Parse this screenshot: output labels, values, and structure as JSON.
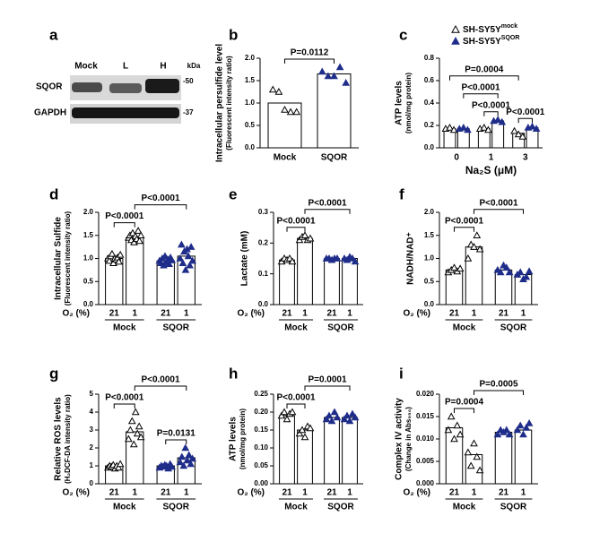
{
  "blot": {
    "panel": "a",
    "lanes": [
      "Mock",
      "L",
      "H"
    ],
    "unit": "kDa",
    "rows": [
      {
        "label": "SQOR",
        "marker": "-50"
      },
      {
        "label": "GAPDH",
        "marker": "-37"
      }
    ]
  },
  "chart_data": [
    {
      "type": "bar",
      "panel": "b",
      "y_label": [
        "Intracellular persulfide level",
        "(Fluorescent intensity ratio)"
      ],
      "groups": [
        "Mock",
        "SQOR"
      ],
      "values": [
        1.0,
        1.65
      ],
      "points": [
        [
          1.3,
          1.25,
          0.85,
          0.8,
          0.8
        ],
        [
          1.7,
          1.6,
          1.6,
          1.8,
          1.45
        ]
      ],
      "point_colors": [
        "#ffffff",
        "#1f2d8a"
      ],
      "ylim": [
        0,
        2
      ],
      "yticks": [
        {
          "value": 0,
          "label": "0.0"
        },
        {
          "value": 0.5,
          "label": "0.5"
        },
        {
          "value": 1,
          "label": "1.0"
        },
        {
          "value": 1.5,
          "label": "1.5"
        },
        {
          "value": 2,
          "label": "2.0"
        }
      ],
      "brackets": [
        {
          "from": 0,
          "to": 1,
          "label": "P=0.0112"
        }
      ]
    },
    {
      "type": "bar",
      "panel": "c",
      "y_label": [
        "ATP levels",
        "(nmol/mg protein)"
      ],
      "x_label": "Na₂S (μM)",
      "legend": [
        {
          "name": "SH-SY5Y",
          "sup": "mock",
          "color": "#ffffff"
        },
        {
          "name": "SH-SY5Y",
          "sup": "SQOR",
          "color": "#1f2d8a"
        }
      ],
      "groups": [
        "0",
        "1",
        "3"
      ],
      "values": [
        0.17,
        0.17,
        0.17,
        0.24,
        0.13,
        0.18
      ],
      "points": [
        [
          0.17,
          0.18,
          0.16
        ],
        [
          0.17,
          0.18,
          0.16
        ],
        [
          0.17,
          0.18,
          0.16
        ],
        [
          0.24,
          0.25,
          0.23
        ],
        [
          0.15,
          0.12,
          0.1
        ],
        [
          0.18,
          0.19,
          0.17
        ]
      ],
      "point_colors": [
        "#ffffff",
        "#1f2d8a",
        "#ffffff",
        "#1f2d8a",
        "#ffffff",
        "#1f2d8a"
      ],
      "ylim": [
        0,
        0.8
      ],
      "yticks": [
        {
          "value": 0,
          "label": "0.0"
        },
        {
          "value": 0.2,
          "label": "0.2"
        },
        {
          "value": 0.4,
          "label": "0.4"
        },
        {
          "value": 0.6,
          "label": "0.6"
        },
        {
          "value": 0.8,
          "label": "0.8"
        }
      ],
      "brackets": [
        {
          "from": 4,
          "to": 5,
          "label": "P<0.0001"
        },
        {
          "from": 2,
          "to": 3,
          "label": "P<0.0001"
        },
        {
          "from": 1,
          "to": 3,
          "label": "P<0.0001"
        },
        {
          "from": 0,
          "to": 4,
          "label": "P=0.0004"
        }
      ]
    },
    {
      "type": "bar",
      "panel": "d",
      "y_label": [
        "Intracellular Sulfide",
        "(Fluorescent intensity ratio)"
      ],
      "x_label": "O₂ (%)",
      "groups": [
        "Mock",
        "SQOR"
      ],
      "subcategories": [
        "21",
        "1",
        "21",
        "1"
      ],
      "values": [
        1.0,
        1.45,
        0.95,
        1.05
      ],
      "points": [
        [
          1.0,
          0.95,
          1.05,
          1.1,
          0.9,
          1.0,
          0.98,
          1.02,
          0.93,
          1.08
        ],
        [
          1.45,
          1.5,
          1.4,
          1.55,
          1.35,
          1.48,
          1.42,
          1.6,
          1.38,
          1.5
        ],
        [
          0.95,
          0.9,
          1.0,
          0.85,
          1.05,
          0.92,
          0.98,
          0.88,
          1.02,
          0.96
        ],
        [
          1.0,
          1.3,
          0.9,
          1.15,
          0.75,
          1.2,
          1.05,
          0.85,
          1.25,
          0.95
        ]
      ],
      "point_colors": [
        "#ffffff",
        "#ffffff",
        "#1f2d8a",
        "#1f2d8a"
      ],
      "ylim": [
        0,
        2
      ],
      "yticks": [
        {
          "value": 0,
          "label": "0.0"
        },
        {
          "value": 0.5,
          "label": "0.5"
        },
        {
          "value": 1,
          "label": "1.0"
        },
        {
          "value": 1.5,
          "label": "1.5"
        },
        {
          "value": 2,
          "label": "2.0"
        }
      ],
      "brackets": [
        {
          "from": 0,
          "to": 1,
          "label": "P<0.0001"
        },
        {
          "from": 1,
          "to": 3,
          "label": "P<0.0001"
        }
      ]
    },
    {
      "type": "bar",
      "panel": "e",
      "y_label": [
        "Lactate (mM)"
      ],
      "x_label": "O₂ (%)",
      "groups": [
        "Mock",
        "SQOR"
      ],
      "subcategories": [
        "21",
        "1",
        "21",
        "1"
      ],
      "values": [
        0.145,
        0.215,
        0.15,
        0.15
      ],
      "points": [
        [
          0.14,
          0.15,
          0.145,
          0.15,
          0.14
        ],
        [
          0.21,
          0.22,
          0.225,
          0.21,
          0.215
        ],
        [
          0.15,
          0.15,
          0.145,
          0.15,
          0.15
        ],
        [
          0.15,
          0.145,
          0.155,
          0.15,
          0.14
        ]
      ],
      "point_colors": [
        "#ffffff",
        "#ffffff",
        "#1f2d8a",
        "#1f2d8a"
      ],
      "ylim": [
        0,
        0.3
      ],
      "yticks": [
        {
          "value": 0,
          "label": "0.0"
        },
        {
          "value": 0.1,
          "label": "0.1"
        },
        {
          "value": 0.2,
          "label": "0.2"
        },
        {
          "value": 0.3,
          "label": "0.3"
        }
      ],
      "brackets": [
        {
          "from": 0,
          "to": 1,
          "label": "P<0.0001"
        },
        {
          "from": 1,
          "to": 3,
          "label": "P<0.0001"
        }
      ]
    },
    {
      "type": "bar",
      "panel": "f",
      "y_label": [
        "NADH/NAD⁺"
      ],
      "x_label": "O₂ (%)",
      "groups": [
        "Mock",
        "SQOR"
      ],
      "subcategories": [
        "21",
        "1",
        "21",
        "1"
      ],
      "values": [
        0.75,
        1.25,
        0.75,
        0.65
      ],
      "points": [
        [
          0.7,
          0.75,
          0.8,
          0.72,
          0.78
        ],
        [
          1.0,
          1.3,
          1.25,
          1.5,
          1.2
        ],
        [
          0.75,
          0.7,
          0.85,
          0.8,
          0.7
        ],
        [
          0.65,
          0.7,
          0.55,
          0.6,
          0.72
        ]
      ],
      "point_colors": [
        "#ffffff",
        "#ffffff",
        "#1f2d8a",
        "#1f2d8a"
      ],
      "ylim": [
        0,
        2
      ],
      "yticks": [
        {
          "value": 0,
          "label": "0.0"
        },
        {
          "value": 0.5,
          "label": "0.5"
        },
        {
          "value": 1,
          "label": "1.0"
        },
        {
          "value": 1.5,
          "label": "1.5"
        },
        {
          "value": 2,
          "label": "2.0"
        }
      ],
      "brackets": [
        {
          "from": 0,
          "to": 1,
          "label": "P<0.0001"
        },
        {
          "from": 1,
          "to": 3,
          "label": "P<0.0001"
        }
      ]
    },
    {
      "type": "bar",
      "panel": "g",
      "y_label": [
        "Relative ROS levels",
        "(H₂DCF-DA intensity ratio)"
      ],
      "x_label": "O₂ (%)",
      "groups": [
        "Mock",
        "SQOR"
      ],
      "subcategories": [
        "21",
        "1",
        "21",
        "1"
      ],
      "values": [
        1.0,
        2.9,
        1.0,
        1.45
      ],
      "points": [
        [
          0.9,
          1.0,
          0.95,
          1.05,
          0.85,
          1.0,
          0.9,
          1.1
        ],
        [
          2.5,
          3.0,
          3.5,
          2.2,
          4.0,
          2.8,
          3.2,
          2.6
        ],
        [
          0.9,
          1.0,
          0.95,
          1.05,
          1.0,
          0.85,
          1.1,
          0.95
        ],
        [
          1.2,
          1.5,
          1.0,
          2.0,
          1.3,
          1.6,
          1.1,
          1.4
        ]
      ],
      "point_colors": [
        "#ffffff",
        "#ffffff",
        "#1f2d8a",
        "#1f2d8a"
      ],
      "ylim": [
        0,
        5
      ],
      "yticks": [
        0,
        1,
        2,
        3,
        4,
        5
      ],
      "brackets": [
        {
          "from": 2,
          "to": 3,
          "label": "P=0.0131"
        },
        {
          "from": 0,
          "to": 1,
          "label": "P<0.0001"
        },
        {
          "from": 1,
          "to": 3,
          "label": "P<0.0001"
        }
      ]
    },
    {
      "type": "bar",
      "panel": "h",
      "y_label": [
        "ATP levels",
        "(nmol/mg protein)"
      ],
      "x_label": "O₂ (%)",
      "groups": [
        "Mock",
        "SQOR"
      ],
      "subcategories": [
        "21",
        "1",
        "21",
        "1"
      ],
      "values": [
        0.19,
        0.15,
        0.185,
        0.185
      ],
      "points": [
        [
          0.19,
          0.2,
          0.18,
          0.195,
          0.2
        ],
        [
          0.14,
          0.15,
          0.13,
          0.16,
          0.155
        ],
        [
          0.18,
          0.19,
          0.175,
          0.2,
          0.185
        ],
        [
          0.18,
          0.19,
          0.175,
          0.195,
          0.185
        ]
      ],
      "point_colors": [
        "#ffffff",
        "#ffffff",
        "#1f2d8a",
        "#1f2d8a"
      ],
      "ylim": [
        0,
        0.25
      ],
      "yticks": [
        {
          "value": 0,
          "label": "0.00"
        },
        {
          "value": 0.05,
          "label": "0.05"
        },
        {
          "value": 0.1,
          "label": "0.10"
        },
        {
          "value": 0.15,
          "label": "0.15"
        },
        {
          "value": 0.2,
          "label": "0.20"
        },
        {
          "value": 0.25,
          "label": "0.25"
        }
      ],
      "brackets": [
        {
          "from": 0,
          "to": 1,
          "label": "P<0.0001"
        },
        {
          "from": 1,
          "to": 3,
          "label": "P=0.0001"
        }
      ]
    },
    {
      "type": "bar",
      "panel": "i",
      "y_label": [
        "Complex IV activity",
        "(Change in Abs₅₅₀)"
      ],
      "x_label": "O₂ (%)",
      "groups": [
        "Mock",
        "SQOR"
      ],
      "subcategories": [
        "21",
        "1",
        "21",
        "1"
      ],
      "values": [
        0.0125,
        0.0065,
        0.0115,
        0.012
      ],
      "points": [
        [
          0.012,
          0.015,
          0.01,
          0.013,
          0.011
        ],
        [
          0.007,
          0.004,
          0.009,
          0.006,
          0.003
        ],
        [
          0.011,
          0.012,
          0.0115,
          0.012,
          0.011
        ],
        [
          0.012,
          0.013,
          0.011,
          0.0125,
          0.0135
        ]
      ],
      "point_colors": [
        "#ffffff",
        "#ffffff",
        "#1f2d8a",
        "#1f2d8a"
      ],
      "ylim": [
        0,
        0.02
      ],
      "yticks": [
        {
          "value": 0,
          "label": "0.000"
        },
        {
          "value": 0.005,
          "label": "0.005"
        },
        {
          "value": 0.01,
          "label": "0.010"
        },
        {
          "value": 0.015,
          "label": "0.015"
        },
        {
          "value": 0.02,
          "label": "0.020"
        }
      ],
      "brackets": [
        {
          "from": 0,
          "to": 1,
          "label": "P=0.0004"
        },
        {
          "from": 1,
          "to": 3,
          "label": "P=0.0005"
        }
      ]
    }
  ]
}
